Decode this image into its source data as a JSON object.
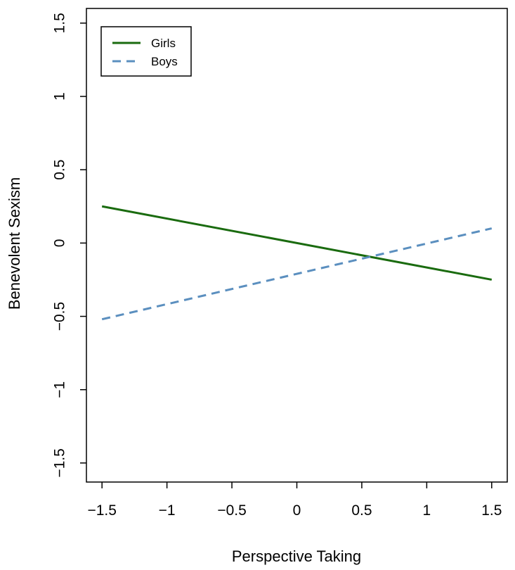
{
  "chart_data": {
    "type": "line",
    "title": "",
    "xlabel": "Perspective Taking",
    "ylabel": "Benevolent Sexism",
    "xlim": [
      -1.62,
      1.62
    ],
    "ylim": [
      -1.63,
      1.6
    ],
    "x_ticks": [
      -1.5,
      -1,
      -0.5,
      0,
      0.5,
      1,
      1.5
    ],
    "x_tick_labels": [
      "−1.5",
      "−1",
      "−0.5",
      "0",
      "0.5",
      "1",
      "1.5"
    ],
    "y_ticks": [
      -1.5,
      -1,
      -0.5,
      0,
      0.5,
      1,
      1.5
    ],
    "y_tick_labels": [
      "−1.5",
      "−1",
      "−0.5",
      "0",
      "0.5",
      "1",
      "1.5"
    ],
    "grid": false,
    "legend": {
      "position": "top-left",
      "entries": [
        "Girls",
        "Boys"
      ]
    },
    "series": [
      {
        "name": "Girls",
        "color": "#1a6b0f",
        "style": "solid",
        "x": [
          -1.5,
          1.5
        ],
        "y": [
          0.25,
          -0.25
        ]
      },
      {
        "name": "Boys",
        "color": "#5b8fbf",
        "style": "dashed",
        "x": [
          -1.5,
          1.5
        ],
        "y": [
          -0.52,
          0.1
        ]
      }
    ]
  }
}
